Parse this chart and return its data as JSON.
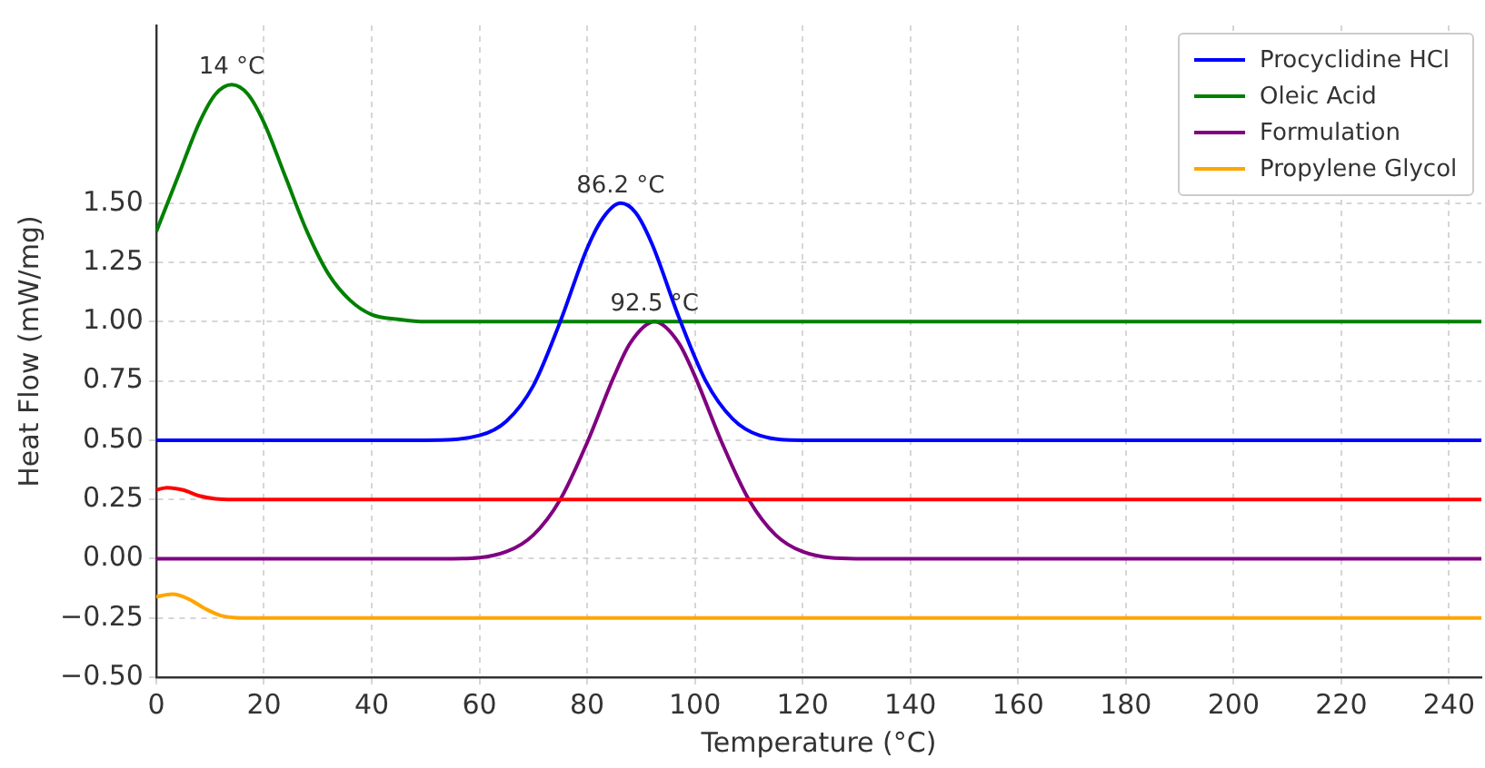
{
  "chart_data": {
    "type": "line",
    "xlabel": "Temperature (°C)",
    "ylabel": "Heat Flow (mW/mg)",
    "xlim": [
      0,
      246
    ],
    "ylim": [
      -0.5,
      2.25
    ],
    "xticks": [
      0,
      20,
      40,
      60,
      80,
      100,
      120,
      140,
      160,
      180,
      200,
      220,
      240
    ],
    "yticks": [
      {
        "value": -0.5,
        "label": "−0.50"
      },
      {
        "value": -0.25,
        "label": "−0.25"
      },
      {
        "value": 0,
        "label": "0.00"
      },
      {
        "value": 0.25,
        "label": "0.25"
      },
      {
        "value": 0.5,
        "label": "0.50"
      },
      {
        "value": 0.75,
        "label": "0.75"
      },
      {
        "value": 1,
        "label": "1.00"
      },
      {
        "value": 1.25,
        "label": "1.25"
      },
      {
        "value": 1.5,
        "label": "1.50"
      }
    ],
    "grid": true,
    "legend": "top right",
    "marker": "none",
    "line_style": "solid",
    "series": [
      {
        "name": "Procyclidine HCl",
        "color": "#0000ff",
        "x": [
          0,
          50,
          60,
          65,
          70,
          75,
          80,
          83,
          86.2,
          89,
          92,
          97,
          102,
          107,
          112,
          120,
          246
        ],
        "values": [
          0.5,
          0.5,
          0.52,
          0.58,
          0.73,
          1.0,
          1.31,
          1.44,
          1.5,
          1.46,
          1.33,
          1.02,
          0.75,
          0.59,
          0.52,
          0.5,
          0.5
        ]
      },
      {
        "name": "Oleic Acid",
        "color": "#008000",
        "x": [
          0,
          4,
          8,
          11,
          14,
          17,
          20,
          24,
          28,
          32,
          36,
          40,
          45,
          50,
          246
        ],
        "values": [
          1.38,
          1.61,
          1.84,
          1.96,
          2.0,
          1.96,
          1.84,
          1.61,
          1.38,
          1.2,
          1.09,
          1.03,
          1.01,
          1.0,
          1.0
        ]
      },
      {
        "color": "#ff0000",
        "x": [
          0,
          2,
          5,
          8,
          11,
          15,
          246
        ],
        "values": [
          0.29,
          0.3,
          0.29,
          0.265,
          0.253,
          0.25,
          0.25
        ]
      },
      {
        "name": "Formulation",
        "color": "#800080",
        "x": [
          0,
          55,
          65,
          70,
          75,
          80,
          85,
          88,
          92.5,
          97,
          100,
          105,
          110,
          115,
          120,
          130,
          246
        ],
        "values": [
          0,
          0,
          0.03,
          0.1,
          0.25,
          0.49,
          0.77,
          0.91,
          1.0,
          0.91,
          0.77,
          0.49,
          0.25,
          0.1,
          0.03,
          0,
          0
        ]
      },
      {
        "name": "Propylene Glycol",
        "color": "#ffa500",
        "x": [
          0,
          3,
          6,
          9,
          12,
          16,
          246
        ],
        "values": [
          -0.16,
          -0.15,
          -0.17,
          -0.21,
          -0.24,
          -0.25,
          -0.25
        ]
      }
    ],
    "annotations": [
      {
        "text": "14 °C",
        "x": 14,
        "y": 2.0
      },
      {
        "text": "86.2 °C",
        "x": 86.2,
        "y": 1.5
      },
      {
        "text": "92.5 °C",
        "x": 92.5,
        "y": 1.0
      }
    ]
  }
}
